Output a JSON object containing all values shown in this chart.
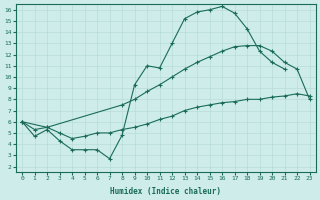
{
  "xlabel": "Humidex (Indice chaleur)",
  "background_color": "#cdecea",
  "grid_color": "#b8dbd9",
  "line_color": "#1a6b5a",
  "xlim": [
    -0.5,
    23.5
  ],
  "ylim": [
    1.5,
    16.5
  ],
  "xticks": [
    0,
    1,
    2,
    3,
    4,
    5,
    6,
    7,
    8,
    9,
    10,
    11,
    12,
    13,
    14,
    15,
    16,
    17,
    18,
    19,
    20,
    21,
    22,
    23
  ],
  "yticks": [
    2,
    3,
    4,
    5,
    6,
    7,
    8,
    9,
    10,
    11,
    12,
    13,
    14,
    15,
    16
  ],
  "curve1_x": [
    0,
    1,
    2,
    3,
    4,
    5,
    6,
    7,
    8,
    9,
    10,
    11,
    12,
    13,
    14,
    15,
    16,
    17,
    18,
    19,
    20,
    21
  ],
  "curve1_y": [
    6.0,
    4.7,
    5.3,
    4.3,
    3.5,
    3.5,
    3.5,
    2.7,
    4.8,
    9.3,
    11.0,
    10.8,
    13.0,
    15.2,
    15.8,
    16.0,
    16.3,
    15.7,
    14.3,
    12.3,
    11.3,
    10.7
  ],
  "curve2_x": [
    0,
    2,
    8,
    9,
    10,
    11,
    12,
    13,
    14,
    15,
    16,
    17,
    18,
    19,
    20,
    21,
    22,
    23
  ],
  "curve2_y": [
    6.0,
    5.5,
    7.5,
    8.0,
    8.7,
    9.3,
    10.0,
    10.7,
    11.3,
    11.8,
    12.3,
    12.7,
    12.8,
    12.8,
    12.3,
    11.3,
    10.7,
    8.0
  ],
  "curve3_x": [
    0,
    1,
    2,
    3,
    4,
    5,
    6,
    7,
    8,
    9,
    10,
    11,
    12,
    13,
    14,
    15,
    16,
    17,
    18,
    19,
    20,
    21,
    22,
    23
  ],
  "curve3_y": [
    6.0,
    5.3,
    5.5,
    5.0,
    4.5,
    4.7,
    5.0,
    5.0,
    5.3,
    5.5,
    5.8,
    6.2,
    6.5,
    7.0,
    7.3,
    7.5,
    7.7,
    7.8,
    8.0,
    8.0,
    8.2,
    8.3,
    8.5,
    8.3
  ]
}
